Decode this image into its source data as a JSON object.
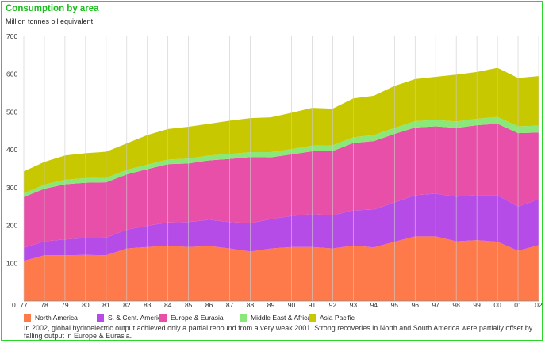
{
  "title": "Consumption by area",
  "subtitle": "Million tonnes oil equivalent",
  "note": "In 2002, global hydroelectric output achieved only a partial rebound from a very weak 2001. Strong recoveries in North and South America were partially offset by falling output in Europe & Eurasia.",
  "legend": [
    {
      "name": "North America",
      "color": "#ff7a4a"
    },
    {
      "name": "S. & Cent. America",
      "color": "#b64ce8"
    },
    {
      "name": "Europe & Eurasia",
      "color": "#e84fa8"
    },
    {
      "name": "Middle East & Africa",
      "color": "#8ae87a"
    },
    {
      "name": "Asia Pacific",
      "color": "#c8c800"
    }
  ],
  "chart_data": {
    "type": "area",
    "stacked": true,
    "title": "Consumption by area",
    "ylabel": "Million tonnes oil equivalent",
    "ylim": [
      0,
      700
    ],
    "yticks": [
      0,
      100,
      200,
      300,
      400,
      500,
      600,
      700
    ],
    "grid": "vertical",
    "x": [
      "77",
      "78",
      "79",
      "80",
      "81",
      "82",
      "83",
      "84",
      "85",
      "86",
      "87",
      "88",
      "89",
      "90",
      "91",
      "92",
      "93",
      "94",
      "95",
      "96",
      "97",
      "98",
      "99",
      "00",
      "01",
      "02"
    ],
    "series": [
      {
        "name": "North America",
        "color": "#ff7a4a",
        "values": [
          106,
          121,
          121,
          122,
          121,
          139,
          143,
          147,
          143,
          146,
          139,
          131,
          139,
          143,
          143,
          139,
          147,
          142,
          157,
          171,
          171,
          158,
          161,
          157,
          133,
          148
        ]
      },
      {
        "name": "S. & Cent. America",
        "color": "#b64ce8",
        "values": [
          35,
          37,
          42,
          45,
          47,
          50,
          56,
          61,
          66,
          69,
          70,
          75,
          78,
          82,
          87,
          88,
          93,
          100,
          104,
          109,
          113,
          118,
          119,
          123,
          117,
          121
        ]
      },
      {
        "name": "Europe & Eurasia",
        "color": "#e84fa8",
        "values": [
          134,
          139,
          146,
          146,
          146,
          146,
          150,
          154,
          155,
          157,
          167,
          175,
          163,
          163,
          166,
          170,
          178,
          181,
          181,
          179,
          178,
          182,
          185,
          189,
          194,
          177
        ]
      },
      {
        "name": "Middle East & Africa",
        "color": "#8ae87a",
        "values": [
          10,
          11,
          12,
          12,
          12,
          12,
          12,
          12,
          13,
          13,
          13,
          13,
          14,
          14,
          15,
          15,
          15,
          16,
          16,
          17,
          17,
          17,
          17,
          18,
          18,
          18
        ]
      },
      {
        "name": "Asia Pacific",
        "color": "#c8c800",
        "values": [
          58,
          60,
          64,
          66,
          69,
          70,
          78,
          81,
          84,
          84,
          88,
          90,
          92,
          96,
          100,
          97,
          103,
          104,
          111,
          111,
          114,
          124,
          124,
          130,
          128,
          131
        ]
      }
    ]
  }
}
